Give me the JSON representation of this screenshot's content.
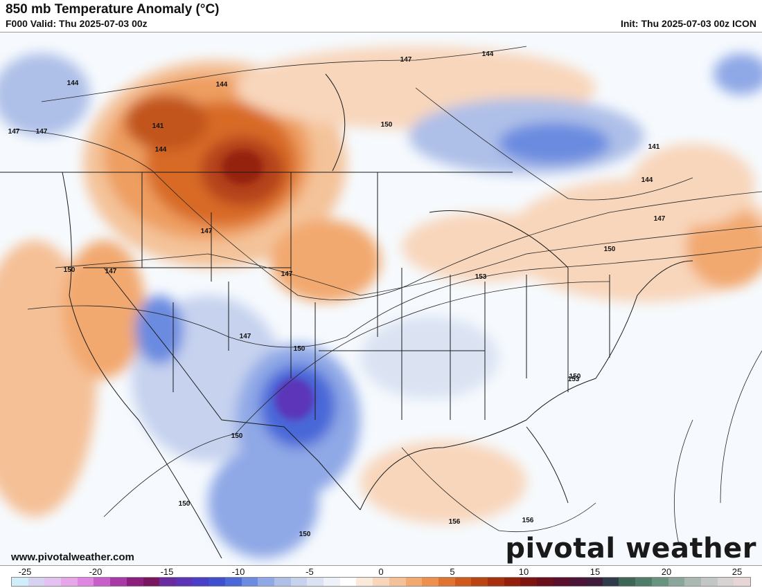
{
  "header": {
    "title": "850 mb Temperature Anomaly (°C)",
    "valid": "F000 Valid: Thu 2025-07-03 00z",
    "init": "Init: Thu 2025-07-03 00z ICON"
  },
  "map": {
    "contour_labels": [
      "144",
      "147",
      "144",
      "147",
      "141",
      "144",
      "150",
      "147",
      "150",
      "147",
      "147",
      "144",
      "147",
      "141",
      "144",
      "147",
      "150",
      "153",
      "150",
      "147",
      "150",
      "153",
      "150",
      "150",
      "156",
      "156",
      "150"
    ]
  },
  "footer": {
    "website": "www.pivotalweather.com",
    "brand": "pivotal weather"
  },
  "colorbar": {
    "ticks": [
      "-25",
      "-20",
      "-15",
      "-10",
      "-5",
      "0",
      "5",
      "10",
      "15",
      "20",
      "25"
    ],
    "colors": [
      "#cfeefa",
      "#d8d2f2",
      "#e3c1f0",
      "#e6a6ea",
      "#de86e0",
      "#c95dc9",
      "#a83aa8",
      "#8c1f7e",
      "#7a1560",
      "#6a2aa0",
      "#5b34b8",
      "#4a3fc8",
      "#3f4fcf",
      "#4a68d8",
      "#6a8be0",
      "#8fa8e6",
      "#aebfe8",
      "#c6d2ee",
      "#dbe3f3",
      "#eef2f8",
      "#ffffff",
      "#fbe9da",
      "#f8d6bb",
      "#f5c096",
      "#f2a96f",
      "#ee904c",
      "#e07330",
      "#d05a1e",
      "#bb4413",
      "#a8300f",
      "#94200c",
      "#7e1410",
      "#6b0f1c",
      "#5a0f2c",
      "#4c1436",
      "#3d1d3a",
      "#2f3b4a",
      "#3e6656",
      "#4f7d6a",
      "#68937f",
      "#8aa69a",
      "#a9b9b2",
      "#c2c6c4",
      "#d6d3d2",
      "#e8d6d6"
    ]
  }
}
